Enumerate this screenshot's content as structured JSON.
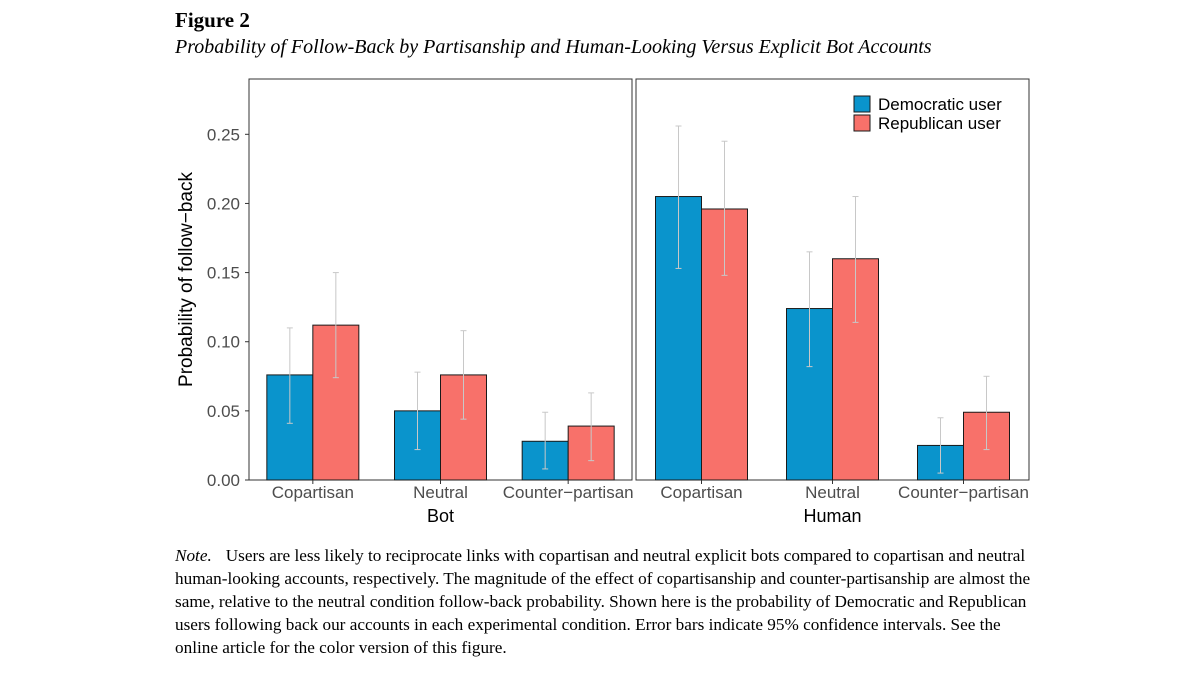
{
  "figure": {
    "label": "Figure 2",
    "title": "Probability of Follow-Back by Partisanship and Human-Looking Versus Explicit Bot Accounts"
  },
  "note": {
    "label": "Note.",
    "text": "Users are less likely to reciprocate links with copartisan and neutral explicit bots compared to copartisan and neutral human-looking accounts, respectively. The magnitude of the effect of copartisanship and counter-partisanship are almost the same, relative to the neutral condition follow-back probability. Shown here is the probability of Democratic and Republican users following back our accounts in each experimental condition. Error bars indicate 95% confidence intervals. See the online article for the color version of this figure."
  },
  "chart_data": {
    "type": "bar",
    "ylabel": "Probability of follow−back",
    "ylim": [
      0,
      0.29
    ],
    "yticks": [
      0.0,
      0.05,
      0.1,
      0.15,
      0.2,
      0.25
    ],
    "ytick_labels": [
      "0.00",
      "0.05",
      "0.10",
      "0.15",
      "0.20",
      "0.25"
    ],
    "legend_position": "top-right",
    "error_bars": "95% confidence intervals",
    "series": [
      {
        "name": "Democratic user",
        "color": "#0a94cc"
      },
      {
        "name": "Republican user",
        "color": "#f8716a"
      }
    ],
    "panels": [
      {
        "name": "Bot",
        "categories": [
          "Copartisan",
          "Neutral",
          "Counter−partisan"
        ],
        "values": [
          [
            0.076,
            0.112
          ],
          [
            0.05,
            0.076
          ],
          [
            0.028,
            0.039
          ]
        ],
        "ci_low": [
          [
            0.041,
            0.074
          ],
          [
            0.022,
            0.044
          ],
          [
            0.008,
            0.014
          ]
        ],
        "ci_high": [
          [
            0.11,
            0.15
          ],
          [
            0.078,
            0.108
          ],
          [
            0.049,
            0.063
          ]
        ]
      },
      {
        "name": "Human",
        "categories": [
          "Copartisan",
          "Neutral",
          "Counter−partisan"
        ],
        "values": [
          [
            0.205,
            0.196
          ],
          [
            0.124,
            0.16
          ],
          [
            0.025,
            0.049
          ]
        ],
        "ci_low": [
          [
            0.153,
            0.148
          ],
          [
            0.082,
            0.114
          ],
          [
            0.005,
            0.022
          ]
        ],
        "ci_high": [
          [
            0.256,
            0.245
          ],
          [
            0.165,
            0.205
          ],
          [
            0.045,
            0.075
          ]
        ]
      }
    ]
  }
}
